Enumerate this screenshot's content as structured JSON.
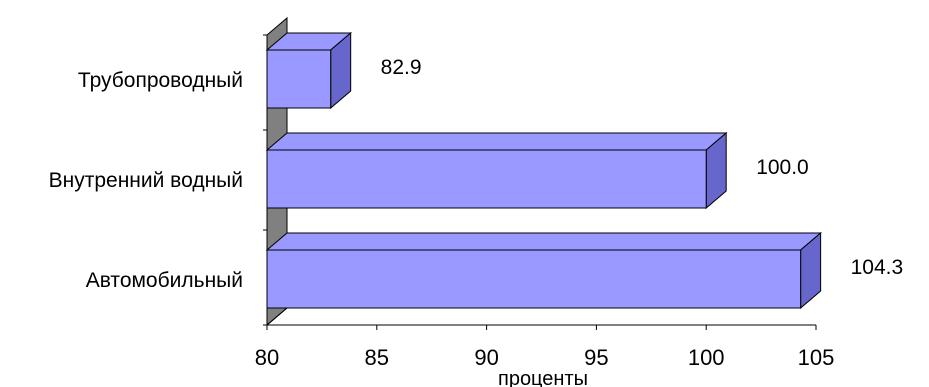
{
  "chart_data": {
    "type": "bar",
    "orientation": "horizontal",
    "three_d": true,
    "categories": [
      "Трубопроводный",
      "Внутренний водный",
      "Автомобильный"
    ],
    "values": [
      82.9,
      100.0,
      104.3
    ],
    "value_labels": [
      "82.9",
      "100.0",
      "104.3"
    ],
    "xlabel": "проценты",
    "ylabel": "",
    "xlim": [
      80,
      105
    ],
    "xticks": [
      80,
      85,
      90,
      95,
      100,
      105
    ],
    "xtick_labels": [
      "80",
      "85",
      "90",
      "95",
      "100",
      "105"
    ],
    "grid": false,
    "legend": "none",
    "colors": {
      "bar_front": "#9999FF",
      "bar_side": "#6666CC",
      "bar_top": "#9999FF",
      "wall": "#808080",
      "outline": "#000000"
    }
  }
}
